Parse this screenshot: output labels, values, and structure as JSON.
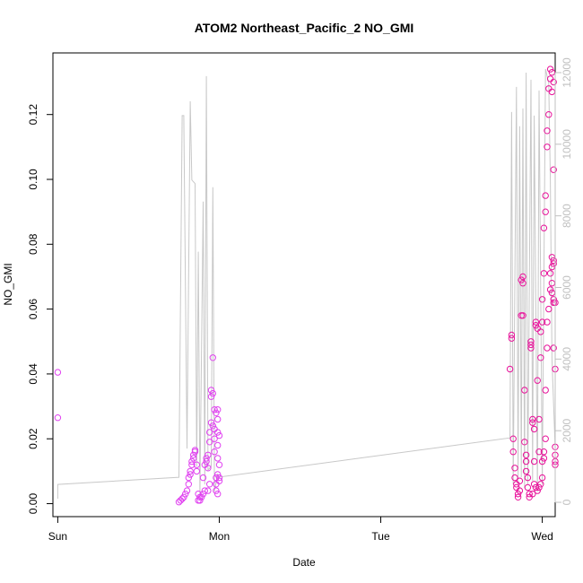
{
  "chart_data": {
    "type": "scatter",
    "title": "ATOM2 Northeast_Pacific_2 NO_GMI",
    "xlabel": "Date",
    "ylabel": "NO_GMI",
    "x_ticks": [
      "Sun",
      "Mon",
      "Tue",
      "Wed"
    ],
    "x_range": [
      -0.03,
      3.08
    ],
    "ylim": [
      -0.004,
      0.139
    ],
    "y_ticks": [
      0.0,
      0.02,
      0.04,
      0.06,
      0.08,
      0.1,
      0.12
    ],
    "y_tick_labels": [
      "0.00",
      "0.02",
      "0.04",
      "0.06",
      "0.08",
      "0.10",
      "0.12"
    ],
    "y2lim": [
      -400,
      12550
    ],
    "y2_ticks": [
      0,
      2000,
      4000,
      6000,
      8000,
      10000,
      12000
    ],
    "y2_tick_labels": [
      "0",
      "2000",
      "4000",
      "6000",
      "8000",
      "10000",
      "12000"
    ],
    "grid": false,
    "colors": {
      "points": "#e8129a",
      "points_early": "#e040f0",
      "line": "#c8c8c8",
      "right_axis": "#c0c0c0"
    },
    "series": [
      {
        "kind": "points",
        "points": [
          [
            0.0,
            0.0405
          ],
          [
            0.0,
            0.0265
          ],
          [
            0.75,
            0.0005
          ],
          [
            0.76,
            0.001
          ],
          [
            0.77,
            0.0015
          ],
          [
            0.78,
            0.002
          ],
          [
            0.79,
            0.003
          ],
          [
            0.8,
            0.004
          ],
          [
            0.81,
            0.006
          ],
          [
            0.81,
            0.008
          ],
          [
            0.82,
            0.009
          ],
          [
            0.82,
            0.01
          ],
          [
            0.83,
            0.012
          ],
          [
            0.83,
            0.013
          ],
          [
            0.84,
            0.014
          ],
          [
            0.84,
            0.015
          ],
          [
            0.85,
            0.016
          ],
          [
            0.85,
            0.0165
          ],
          [
            0.86,
            0.012
          ],
          [
            0.86,
            0.01
          ],
          [
            0.87,
            0.003
          ],
          [
            0.87,
            0.001
          ],
          [
            0.88,
            0.001
          ],
          [
            0.88,
            0.002
          ],
          [
            0.89,
            0.002
          ],
          [
            0.9,
            0.003
          ],
          [
            0.91,
            0.004
          ],
          [
            0.9,
            0.008
          ],
          [
            0.91,
            0.012
          ],
          [
            0.92,
            0.014
          ],
          [
            0.92,
            0.013
          ],
          [
            0.93,
            0.011
          ],
          [
            0.93,
            0.015
          ],
          [
            0.94,
            0.019
          ],
          [
            0.94,
            0.022
          ],
          [
            0.95,
            0.025
          ],
          [
            0.95,
            0.033
          ],
          [
            0.95,
            0.035
          ],
          [
            0.96,
            0.034
          ],
          [
            0.96,
            0.045
          ],
          [
            0.97,
            0.029
          ],
          [
            0.97,
            0.02
          ],
          [
            0.97,
            0.016
          ],
          [
            0.98,
            0.008
          ],
          [
            0.98,
            0.006
          ],
          [
            0.98,
            0.004
          ],
          [
            0.99,
            0.003
          ],
          [
            0.99,
            0.009
          ],
          [
            0.99,
            0.014
          ],
          [
            0.99,
            0.018
          ],
          [
            0.99,
            0.022
          ],
          [
            0.99,
            0.026
          ],
          [
            0.99,
            0.029
          ],
          [
            0.98,
            0.028
          ],
          [
            1.0,
            0.021
          ],
          [
            1.0,
            0.012
          ],
          [
            1.0,
            0.008
          ],
          [
            1.0,
            0.007
          ],
          [
            0.96,
            0.024
          ],
          [
            0.97,
            0.023
          ],
          [
            0.94,
            0.006
          ],
          [
            0.93,
            0.004
          ],
          [
            2.8,
            0.0415
          ],
          [
            2.81,
            0.051
          ],
          [
            2.81,
            0.052
          ],
          [
            2.82,
            0.02
          ],
          [
            2.82,
            0.016
          ],
          [
            2.83,
            0.011
          ],
          [
            2.83,
            0.008
          ],
          [
            2.84,
            0.006
          ],
          [
            2.84,
            0.005
          ],
          [
            2.85,
            0.003
          ],
          [
            2.85,
            0.002
          ],
          [
            2.86,
            0.004
          ],
          [
            2.86,
            0.007
          ],
          [
            2.87,
            0.058
          ],
          [
            2.87,
            0.069
          ],
          [
            2.88,
            0.07
          ],
          [
            2.88,
            0.068
          ],
          [
            2.88,
            0.058
          ],
          [
            2.89,
            0.035
          ],
          [
            2.89,
            0.019
          ],
          [
            2.9,
            0.015
          ],
          [
            2.9,
            0.013
          ],
          [
            2.9,
            0.01
          ],
          [
            2.91,
            0.008
          ],
          [
            2.91,
            0.005
          ],
          [
            2.92,
            0.003
          ],
          [
            2.92,
            0.002
          ],
          [
            2.93,
            0.048
          ],
          [
            2.93,
            0.049
          ],
          [
            2.93,
            0.05
          ],
          [
            2.94,
            0.026
          ],
          [
            2.94,
            0.025
          ],
          [
            2.95,
            0.023
          ],
          [
            2.95,
            0.013
          ],
          [
            2.96,
            0.055
          ],
          [
            2.96,
            0.056
          ],
          [
            2.97,
            0.054
          ],
          [
            2.97,
            0.038
          ],
          [
            2.98,
            0.026
          ],
          [
            2.98,
            0.016
          ],
          [
            2.99,
            0.045
          ],
          [
            2.99,
            0.053
          ],
          [
            3.0,
            0.056
          ],
          [
            3.0,
            0.063
          ],
          [
            3.01,
            0.071
          ],
          [
            3.01,
            0.085
          ],
          [
            3.02,
            0.09
          ],
          [
            3.02,
            0.095
          ],
          [
            3.03,
            0.11
          ],
          [
            3.03,
            0.115
          ],
          [
            3.04,
            0.12
          ],
          [
            3.04,
            0.128
          ],
          [
            3.05,
            0.131
          ],
          [
            3.05,
            0.134
          ],
          [
            3.06,
            0.133
          ],
          [
            3.06,
            0.127
          ],
          [
            3.07,
            0.13
          ],
          [
            3.07,
            0.103
          ],
          [
            3.06,
            0.076
          ],
          [
            3.07,
            0.075
          ],
          [
            3.06,
            0.068
          ],
          [
            3.06,
            0.065
          ],
          [
            3.07,
            0.063
          ],
          [
            3.07,
            0.062
          ],
          [
            3.08,
            0.062
          ],
          [
            3.07,
            0.074
          ],
          [
            3.06,
            0.073
          ],
          [
            3.05,
            0.071
          ],
          [
            3.05,
            0.066
          ],
          [
            3.04,
            0.06
          ],
          [
            3.03,
            0.056
          ],
          [
            3.03,
            0.048
          ],
          [
            3.02,
            0.035
          ],
          [
            3.02,
            0.02
          ],
          [
            3.01,
            0.016
          ],
          [
            3.01,
            0.014
          ],
          [
            3.0,
            0.013
          ],
          [
            3.0,
            0.008
          ],
          [
            2.99,
            0.006
          ],
          [
            2.98,
            0.005
          ],
          [
            2.97,
            0.004
          ],
          [
            2.96,
            0.005
          ],
          [
            2.95,
            0.006
          ],
          [
            2.94,
            0.003
          ],
          [
            3.08,
            0.0415
          ],
          [
            3.08,
            0.0175
          ],
          [
            3.08,
            0.015
          ],
          [
            3.08,
            0.013
          ],
          [
            3.08,
            0.012
          ],
          [
            3.07,
            0.048
          ]
        ]
      },
      {
        "kind": "line",
        "axis": "right",
        "points": [
          [
            0.0,
            100
          ],
          [
            0.0,
            500
          ],
          [
            0.75,
            700
          ],
          [
            0.77,
            10800
          ],
          [
            0.78,
            10800
          ],
          [
            0.8,
            1500
          ],
          [
            0.82,
            11200
          ],
          [
            0.83,
            9000
          ],
          [
            0.85,
            8900
          ],
          [
            0.86,
            1000
          ],
          [
            0.87,
            7000
          ],
          [
            0.88,
            200
          ],
          [
            0.9,
            8400
          ],
          [
            0.91,
            500
          ],
          [
            0.92,
            11900
          ],
          [
            0.93,
            900
          ],
          [
            0.95,
            1000
          ],
          [
            0.96,
            8800
          ],
          [
            0.97,
            300
          ],
          [
            0.99,
            800
          ],
          [
            0.99,
            700
          ],
          [
            2.8,
            1800
          ],
          [
            2.81,
            10900
          ],
          [
            2.82,
            500
          ],
          [
            2.84,
            11600
          ],
          [
            2.85,
            600
          ],
          [
            2.86,
            10500
          ],
          [
            2.87,
            700
          ],
          [
            2.88,
            11000
          ],
          [
            2.89,
            400
          ],
          [
            2.9,
            12000
          ],
          [
            2.91,
            500
          ],
          [
            2.93,
            11800
          ],
          [
            2.94,
            600
          ],
          [
            2.95,
            10800
          ],
          [
            2.97,
            300
          ],
          [
            2.98,
            11500
          ],
          [
            3.0,
            500
          ],
          [
            3.02,
            12100
          ],
          [
            3.04,
            11700
          ],
          [
            3.05,
            9000
          ],
          [
            3.06,
            4000
          ],
          [
            3.08,
            1500
          ]
        ]
      }
    ]
  }
}
